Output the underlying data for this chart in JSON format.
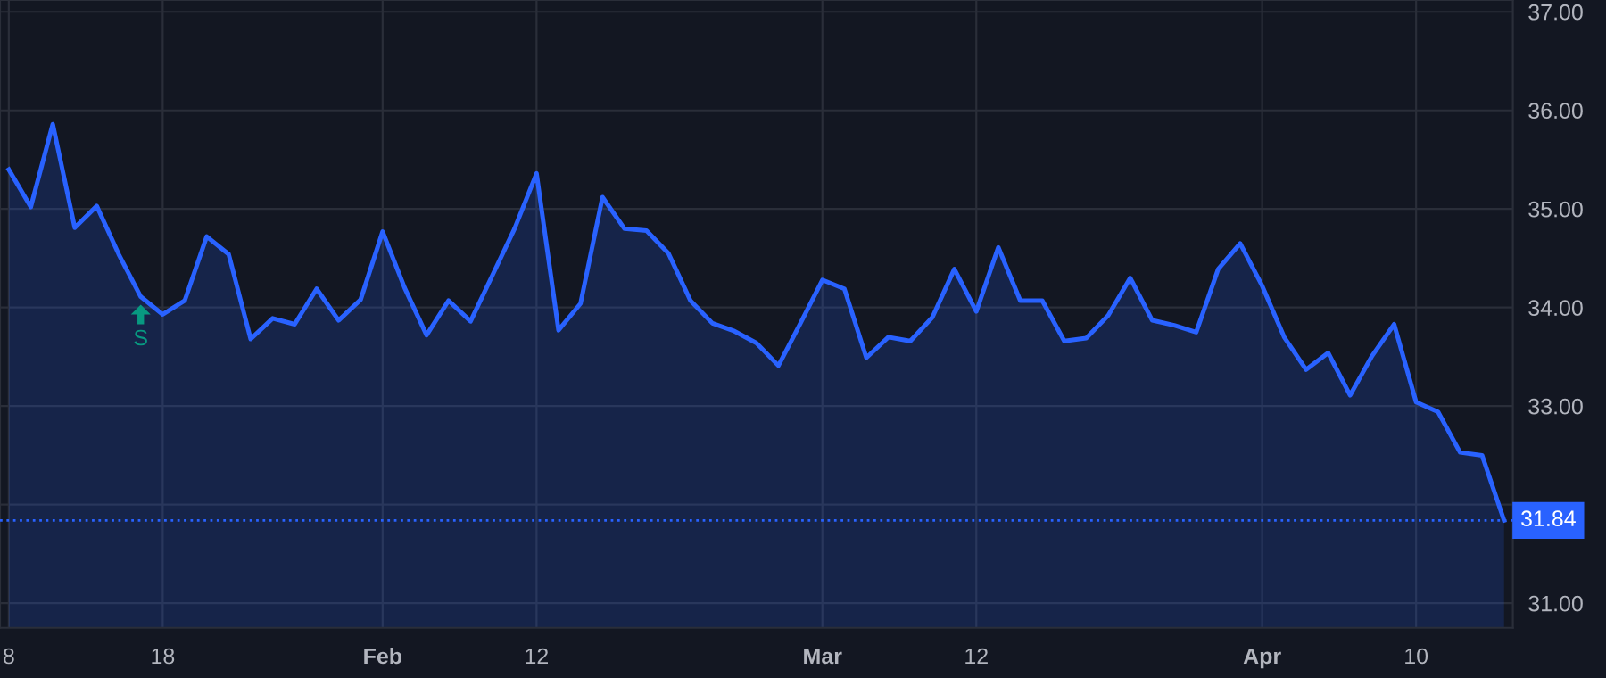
{
  "chart_data": {
    "type": "area",
    "categories": [
      "8",
      null,
      null,
      null,
      null,
      null,
      null,
      "18",
      null,
      null,
      null,
      null,
      null,
      null,
      null,
      null,
      null,
      "Feb",
      null,
      null,
      null,
      null,
      null,
      null,
      "12",
      null,
      null,
      null,
      null,
      null,
      null,
      null,
      null,
      null,
      null,
      null,
      null,
      "Mar",
      null,
      null,
      null,
      null,
      null,
      null,
      "12",
      null,
      null,
      null,
      null,
      null,
      null,
      null,
      null,
      null,
      null,
      null,
      null,
      "Apr",
      null,
      null,
      null,
      null,
      null,
      null,
      "10",
      null,
      null,
      null,
      null
    ],
    "series": [
      {
        "color": "#2962ff",
        "values": [
          35.4,
          35.02,
          35.86,
          34.81,
          35.03,
          34.54,
          34.11,
          33.93,
          34.07,
          34.72,
          34.54,
          33.68,
          33.89,
          33.83,
          34.19,
          33.87,
          34.08,
          34.77,
          34.2,
          33.72,
          34.07,
          33.86,
          34.33,
          34.8,
          35.36,
          33.77,
          34.04,
          35.12,
          34.8,
          34.78,
          34.55,
          34.07,
          33.84,
          33.76,
          33.64,
          33.41,
          33.84,
          34.28,
          34.19,
          33.49,
          33.7,
          33.66,
          33.9,
          34.39,
          33.96,
          34.61,
          34.07,
          34.07,
          33.66,
          33.69,
          33.92,
          34.3,
          33.87,
          33.82,
          33.75,
          34.39,
          34.65,
          34.22,
          33.7,
          33.37,
          33.54,
          33.11,
          33.51,
          33.83,
          33.04,
          32.94,
          32.53,
          32.5,
          31.84
        ]
      }
    ],
    "ylim": [
      30.75,
      37.12
    ],
    "yticks": [
      {
        "value": 31,
        "label": "31.00"
      },
      {
        "value": 32,
        "label": null
      },
      {
        "value": 33,
        "label": "33.00"
      },
      {
        "value": 34,
        "label": "34.00"
      },
      {
        "value": 35,
        "label": "35.00"
      },
      {
        "value": 36,
        "label": "36.00"
      },
      {
        "value": 37,
        "label": "37.00"
      }
    ],
    "ref_lines": [
      {
        "axis": "y",
        "value": 31.84,
        "label": "31.84",
        "color": "#2962ff",
        "line_style": "dotted"
      }
    ],
    "annotations": [
      {
        "text": "S",
        "y": 34.11
      }
    ],
    "grid": true,
    "marker": "none",
    "line_style": "solid"
  }
}
